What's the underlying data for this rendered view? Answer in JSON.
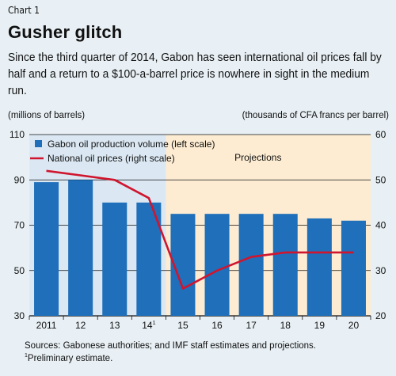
{
  "header": {
    "kicker": "Chart 1",
    "title": "Gusher glitch",
    "subtitle": "Since the third quarter of 2014, Gabon has seen international oil prices fall by half and a return to a $100-a-barrel price is nowhere in sight in the medium run."
  },
  "colors": {
    "bar": "#1f6fba",
    "line": "#d0152e",
    "projection_shade": "#fdecd2",
    "actual_shade": "#dbe8f3",
    "background": "#e8f0f5"
  },
  "chart_data": {
    "type": "bar",
    "categories": [
      "2011",
      "12",
      "13",
      "14",
      "15",
      "16",
      "17",
      "18",
      "19",
      "20"
    ],
    "category_superscripts": [
      "",
      "",
      "",
      "1",
      "",
      "",
      "",
      "",
      "",
      ""
    ],
    "series": [
      {
        "name": "Gabon oil production volume (left scale)",
        "type": "bar",
        "axis": "left",
        "values": [
          89,
          90,
          80,
          80,
          75,
          75,
          75,
          75,
          73,
          72
        ]
      },
      {
        "name": "National oil prices (right scale)",
        "type": "line",
        "axis": "right",
        "values": [
          52,
          51,
          50,
          46,
          26,
          30,
          33,
          34,
          34,
          34
        ]
      }
    ],
    "left_axis": {
      "label": "(millions of barrels)",
      "ylim": [
        30,
        110
      ],
      "ticks": [
        "30",
        "50",
        "70",
        "90",
        "110"
      ]
    },
    "right_axis": {
      "label": "(thousands of CFA francs per barrel)",
      "ylim": [
        20,
        60
      ],
      "ticks": [
        "20",
        "30",
        "40",
        "50",
        "60"
      ]
    },
    "projection_label": "Projections",
    "projection_start_category": "15",
    "grid": "horizontal",
    "legend_placement": "top-left"
  },
  "footer": {
    "source": "Sources: Gabonese authorities; and IMF staff estimates and projections.",
    "footnote_marker": "1",
    "footnote_text": "Preliminary estimate."
  }
}
